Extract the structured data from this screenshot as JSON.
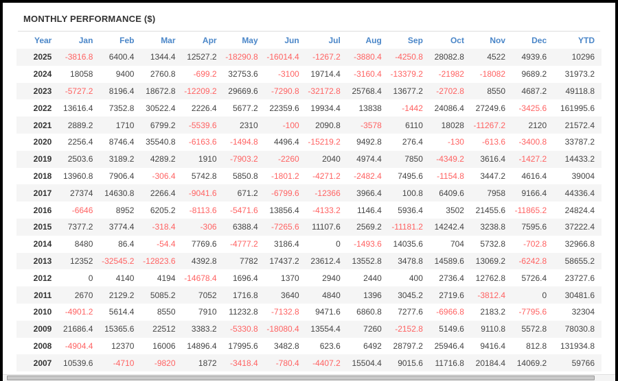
{
  "title": "MONTHLY PERFORMANCE ($)",
  "colors": {
    "header_text": "#4a86c8",
    "negative_value": "#ff6262",
    "positive_value": "#444444",
    "year_text": "#333333",
    "row_stripe": "#f5f5f5",
    "frame_border": "#000000"
  },
  "scrollbar": {
    "orientation": "horizontal"
  },
  "chart_data": {
    "type": "table",
    "title": "MONTHLY PERFORMANCE ($)",
    "columns": [
      "Year",
      "Jan",
      "Feb",
      "Mar",
      "Apr",
      "May",
      "Jun",
      "Jul",
      "Aug",
      "Sep",
      "Oct",
      "Nov",
      "Dec",
      "YTD"
    ],
    "rows": [
      {
        "year": "2025",
        "values": [
          -3816.8,
          6400.4,
          1344.4,
          12527.2,
          -18290.8,
          -16014.4,
          -1267.2,
          -3880.4,
          -4250.8,
          28082.8,
          4522,
          4939.6,
          10296
        ]
      },
      {
        "year": "2024",
        "values": [
          18058,
          9400,
          2760.8,
          -699.2,
          32753.6,
          -3100,
          19714.4,
          -3160.4,
          -13379.2,
          -21982,
          -18082,
          9689.2,
          31973.2
        ]
      },
      {
        "year": "2023",
        "values": [
          -5727.2,
          8196.4,
          18672.8,
          -12209.2,
          29669.6,
          -7290.8,
          -32172.8,
          25768.4,
          13677.2,
          -2702.8,
          8550,
          4687.2,
          49118.8
        ]
      },
      {
        "year": "2022",
        "values": [
          13616.4,
          7352.8,
          30522.4,
          2226.4,
          5677.2,
          22359.6,
          19934.4,
          13838,
          -1442,
          24086.4,
          27249.6,
          -3425.6,
          161995.6
        ]
      },
      {
        "year": "2021",
        "values": [
          2889.2,
          1710,
          6799.2,
          -5539.6,
          2310,
          -100,
          2090.8,
          -3578,
          6110,
          18028,
          -11267.2,
          2120,
          21572.4
        ]
      },
      {
        "year": "2020",
        "values": [
          2256.4,
          8746.4,
          35540.8,
          -6163.6,
          -1494.8,
          4496.4,
          -15219.2,
          9492.8,
          276.4,
          -130,
          -613.6,
          -3400.8,
          33787.2
        ]
      },
      {
        "year": "2019",
        "values": [
          2503.6,
          3189.2,
          4289.2,
          1910,
          -7903.2,
          -2260,
          2040,
          4974.4,
          7850,
          -4349.2,
          3616.4,
          -1427.2,
          14433.2
        ]
      },
      {
        "year": "2018",
        "values": [
          13960.8,
          7906.4,
          -306.4,
          5742.8,
          5850.8,
          -1801.2,
          -4271.2,
          -2482.4,
          7495.6,
          -1154.8,
          3447.2,
          4616.4,
          39004
        ]
      },
      {
        "year": "2017",
        "values": [
          27374,
          14630.8,
          2266.4,
          -9041.6,
          671.2,
          -6799.6,
          -12366,
          3966.4,
          100.8,
          6409.6,
          7958,
          9166.4,
          44336.4
        ]
      },
      {
        "year": "2016",
        "values": [
          -6646,
          8952,
          6205.2,
          -8113.6,
          -5471.6,
          13856.4,
          -4133.2,
          1146.4,
          5936.4,
          3502,
          21455.6,
          -11865.2,
          24824.4
        ]
      },
      {
        "year": "2015",
        "values": [
          7377.2,
          3774.4,
          -318.4,
          -306,
          6388.4,
          -7265.6,
          11107.6,
          2569.2,
          -11181.2,
          14242.4,
          3238.8,
          7595.6,
          37222.4
        ]
      },
      {
        "year": "2014",
        "values": [
          8480,
          86.4,
          -54.4,
          7769.6,
          -4777.2,
          3186.4,
          0,
          -1493.6,
          14035.6,
          704,
          5732.8,
          -702.8,
          32966.8
        ]
      },
      {
        "year": "2013",
        "values": [
          12352,
          -32545.2,
          -12823.6,
          4392.8,
          7782,
          17437.2,
          23612.4,
          13552.8,
          3478.8,
          14589.6,
          13069.2,
          -6242.8,
          58655.2
        ]
      },
      {
        "year": "2012",
        "values": [
          0,
          4140,
          4194,
          -14678.4,
          1696.4,
          1370,
          2940,
          2440,
          400,
          2736.4,
          12762.8,
          5726.4,
          23727.6
        ]
      },
      {
        "year": "2011",
        "values": [
          2670,
          2129.2,
          5085.2,
          7052,
          1716.8,
          3640,
          4840,
          1396,
          3045.2,
          2719.6,
          -3812.4,
          0,
          30481.6
        ]
      },
      {
        "year": "2010",
        "values": [
          -4901.2,
          5614.4,
          8550,
          7910,
          11232.8,
          -7132.8,
          9471.6,
          6860.8,
          7277.6,
          -6966.8,
          2183.2,
          -7795.6,
          32304
        ]
      },
      {
        "year": "2009",
        "values": [
          21686.4,
          15365.6,
          22512,
          3383.2,
          -5330.8,
          -18080.4,
          13554.4,
          7260,
          -2152.8,
          5149.6,
          9110.8,
          5572.8,
          78030.8
        ]
      },
      {
        "year": "2008",
        "values": [
          -4904.4,
          12370,
          16006,
          14896.4,
          17995.6,
          3482.8,
          623.6,
          6492,
          28797.2,
          25946.4,
          9416.4,
          812.8,
          131934.8
        ]
      },
      {
        "year": "2007",
        "values": [
          10539.6,
          -4710,
          -9820,
          1872,
          -3418.4,
          -780.4,
          -4407.2,
          15504.4,
          9015.6,
          11716.8,
          20184.4,
          14069.2,
          59766
        ]
      }
    ]
  }
}
